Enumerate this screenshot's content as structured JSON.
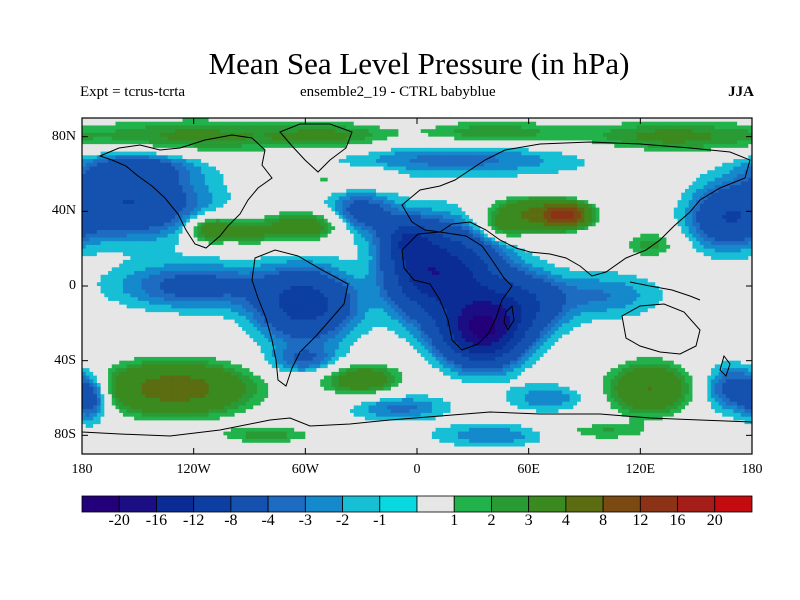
{
  "title": "Mean Sea Level Pressure (in hPa)",
  "subtitle_left": "Expt = tcrus-tcrta",
  "subtitle_center": "ensemble2_19 - CTRL babyblue",
  "season": "JJA",
  "lat_ticks": [
    {
      "label": "80N",
      "value": 80
    },
    {
      "label": "40N",
      "value": 40
    },
    {
      "label": "0",
      "value": 0
    },
    {
      "label": "40S",
      "value": -40
    },
    {
      "label": "80S",
      "value": -80
    }
  ],
  "lon_ticks": [
    {
      "label": "180",
      "value": -180
    },
    {
      "label": "120W",
      "value": -120
    },
    {
      "label": "60W",
      "value": -60
    },
    {
      "label": "0",
      "value": 0
    },
    {
      "label": "60E",
      "value": 60
    },
    {
      "label": "120E",
      "value": 120
    },
    {
      "label": "180",
      "value": 180
    }
  ],
  "colorbar": {
    "colors": [
      "#23007a",
      "#1b0e85",
      "#0b2c95",
      "#0d3fa2",
      "#1552b0",
      "#1e6cc2",
      "#1489cc",
      "#17bfd5",
      "#08d8e0",
      "#e6e6e6",
      "#22b24c",
      "#299a34",
      "#3a8a1f",
      "#5b6d10",
      "#7a4a12",
      "#8c3216",
      "#a41d18",
      "#c40c10"
    ],
    "labels": [
      "-20",
      "-16",
      "-12",
      "-8",
      "-4",
      "-3",
      "-2",
      "-1",
      "1",
      "2",
      "3",
      "4",
      "8",
      "12",
      "16",
      "20"
    ]
  },
  "chart_data": {
    "type": "heatmap",
    "title": "Mean Sea Level Pressure (in hPa)",
    "variable": "MSLP difference (hPa)",
    "x_range": [
      -180,
      180
    ],
    "y_range": [
      -90,
      90
    ],
    "levels": [
      -20,
      -16,
      -12,
      -8,
      -4,
      -3,
      -2,
      -1,
      1,
      2,
      3,
      4,
      8,
      12,
      16,
      20
    ],
    "background_value": 0,
    "blobs": [
      {
        "lon": -120,
        "lat": 80,
        "value": 4.5,
        "rlon": 55,
        "rlat": 10
      },
      {
        "lon": -45,
        "lat": 80,
        "value": 4,
        "rlon": 35,
        "rlat": 8
      },
      {
        "lon": 40,
        "lat": 82,
        "value": 4,
        "rlon": 40,
        "rlat": 7
      },
      {
        "lon": 135,
        "lat": 80,
        "value": 4.5,
        "rlon": 50,
        "rlat": 9
      },
      {
        "lon": -155,
        "lat": 45,
        "value": -8,
        "rlon": 38,
        "rlat": 18
      },
      {
        "lon": -150,
        "lat": 65,
        "value": -4,
        "rlon": 30,
        "rlat": 8
      },
      {
        "lon": 20,
        "lat": 68,
        "value": -3.5,
        "rlon": 70,
        "rlat": 9
      },
      {
        "lon": -50,
        "lat": 58,
        "value": 2.5,
        "rlon": 12,
        "rlat": 6
      },
      {
        "lon": -25,
        "lat": 58,
        "value": 2.5,
        "rlon": 14,
        "rlat": 6
      },
      {
        "lon": -110,
        "lat": 30,
        "value": 7,
        "rlon": 12,
        "rlat": 7
      },
      {
        "lon": -60,
        "lat": 32,
        "value": 6,
        "rlon": 26,
        "rlat": 8
      },
      {
        "lon": -90,
        "lat": 28,
        "value": 4,
        "rlon": 10,
        "rlat": 6
      },
      {
        "lon": -30,
        "lat": 38,
        "value": -6,
        "rlon": 18,
        "rlat": 12
      },
      {
        "lon": -5,
        "lat": 25,
        "value": -7,
        "rlon": 12,
        "rlat": 10
      },
      {
        "lon": 20,
        "lat": 5,
        "value": -12,
        "rlon": 25,
        "rlat": 25
      },
      {
        "lon": 0,
        "lat": 10,
        "value": -8,
        "rlon": 18,
        "rlat": 20
      },
      {
        "lon": 35,
        "lat": -25,
        "value": -18,
        "rlon": 20,
        "rlat": 16
      },
      {
        "lon": 55,
        "lat": -10,
        "value": -8,
        "rlon": 22,
        "rlat": 16
      },
      {
        "lon": -60,
        "lat": -10,
        "value": -10,
        "rlon": 25,
        "rlat": 18
      },
      {
        "lon": -120,
        "lat": 0,
        "value": -5,
        "rlon": 40,
        "rlat": 12
      },
      {
        "lon": -60,
        "lat": -40,
        "value": -4,
        "rlon": 20,
        "rlat": 8
      },
      {
        "lon": 60,
        "lat": 38,
        "value": 8,
        "rlon": 22,
        "rlat": 9
      },
      {
        "lon": 80,
        "lat": 38,
        "value": 16,
        "rlon": 12,
        "rlat": 6
      },
      {
        "lon": 45,
        "lat": 30,
        "value": 3,
        "rlon": 12,
        "rlat": 6
      },
      {
        "lon": 125,
        "lat": 22,
        "value": 3.5,
        "rlon": 15,
        "rlat": 8
      },
      {
        "lon": 165,
        "lat": 35,
        "value": -6,
        "rlon": 18,
        "rlat": 15
      },
      {
        "lon": 100,
        "lat": -5,
        "value": -3,
        "rlon": 30,
        "rlat": 12
      },
      {
        "lon": -130,
        "lat": -55,
        "value": 10,
        "rlon": 40,
        "rlat": 14
      },
      {
        "lon": -30,
        "lat": -50,
        "value": 6,
        "rlon": 22,
        "rlat": 9
      },
      {
        "lon": 125,
        "lat": -55,
        "value": 8,
        "rlon": 22,
        "rlat": 14
      },
      {
        "lon": -80,
        "lat": -80,
        "value": 3.5,
        "rlon": 28,
        "rlat": 5
      },
      {
        "lon": 40,
        "lat": -80,
        "value": -3,
        "rlon": 30,
        "rlat": 6
      },
      {
        "lon": 100,
        "lat": -78,
        "value": 3,
        "rlon": 25,
        "rlat": 5
      },
      {
        "lon": 170,
        "lat": -55,
        "value": -6,
        "rlon": 15,
        "rlat": 12
      },
      {
        "lon": -175,
        "lat": -60,
        "value": -6,
        "rlon": 10,
        "rlat": 12
      },
      {
        "lon": -10,
        "lat": -65,
        "value": -3.5,
        "rlon": 25,
        "rlat": 7
      },
      {
        "lon": 70,
        "lat": -60,
        "value": -3,
        "rlon": 20,
        "rlat": 7
      }
    ]
  }
}
